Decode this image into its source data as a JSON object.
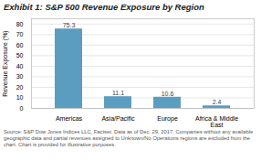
{
  "chart_data": {
    "type": "bar",
    "title": "Exhibit 1: S&P 500 Revenue Exposure by Region",
    "categories": [
      "Americas",
      "Asia/Pacific",
      "Europe",
      "Africa & Middle East"
    ],
    "values": [
      75.3,
      11.1,
      10.6,
      2.4
    ],
    "color": "#5b9dc0",
    "ylabel": "Revenue Exposure (%)",
    "ylim": [
      0,
      85
    ],
    "yticks": [
      0,
      10,
      20,
      30,
      40,
      50,
      60,
      70,
      80
    ],
    "grid": true,
    "data_labels": true,
    "source": "Source: S&P Dow Jones Indices LLC, Factset. Data as of Dec. 29, 2017. Companies without any available geographic data and partial revenues assigned to Unknown/No Operations regions are excluded from the chart. Chart is provided for illustrative purposes."
  }
}
